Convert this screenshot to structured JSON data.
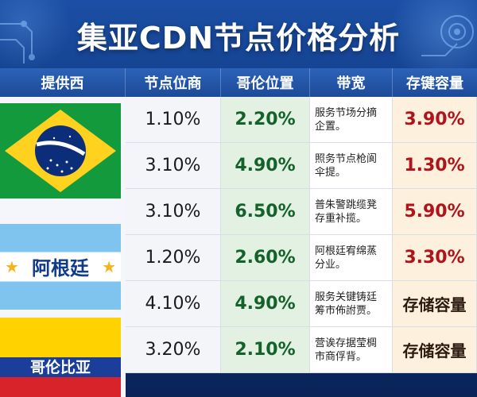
{
  "header": {
    "title": "集亚CDN节点价格分析"
  },
  "columns": {
    "provider": "提供西",
    "node_price": "节点位商",
    "geo_position": "哥伦位置",
    "bandwidth": "带宽",
    "storage_capacity": "存键容量"
  },
  "flags": [
    {
      "country": "Brazil",
      "name": ""
    },
    {
      "country": "Argentina",
      "name": "阿根廷"
    },
    {
      "country": "Colombia",
      "name": "哥伦比亚"
    }
  ],
  "rows": [
    {
      "node": "1.10%",
      "geo": "2.20%",
      "bandwidth": "服务节场分摘\n企置。",
      "storage": "3.90%"
    },
    {
      "node": "3.10%",
      "geo": "4.90%",
      "bandwidth": "照务节点枪阆\n伞提。",
      "storage": "1.30%"
    },
    {
      "node": "3.10%",
      "geo": "6.50%",
      "bandwidth": "普朱警跳缆凳\n存重补揽。",
      "storage": "5.90%"
    },
    {
      "node": "1.20%",
      "geo": "2.60%",
      "bandwidth": "阿根廷宥绵蒸\n分业。",
      "storage": "3.30%"
    },
    {
      "node": "4.10%",
      "geo": "4.90%",
      "bandwidth": "服务关键铸廷\n筹市佈詂贾。",
      "storage": "存储容量"
    },
    {
      "node": "3.20%",
      "geo": "2.10%",
      "bandwidth": "营诶存据莹椆\n市商俘背。",
      "storage": "存储容量"
    }
  ],
  "colors": {
    "header_bg": "#1c4a98",
    "geo_green": "#14622b",
    "storage_red": "#b1131b",
    "brazil_green": "#139a3c",
    "brazil_yellow": "#ffd21f",
    "brazil_blue": "#0b2d7a"
  },
  "icons": {
    "circuit": "circuit-board-icon",
    "star": "star-icon"
  }
}
